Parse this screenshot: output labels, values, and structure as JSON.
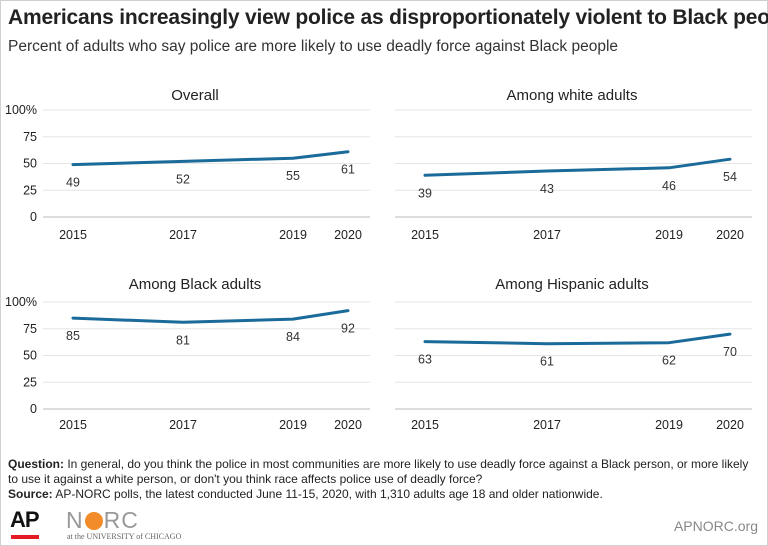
{
  "title": "Americans increasingly view police as disproportionately violent to Black people",
  "subtitle": "Percent of adults who say police are more likely to use deadly force against Black people",
  "chart_data": [
    {
      "type": "line",
      "title": "Overall",
      "x": [
        "2015",
        "2017",
        "2019",
        "2020"
      ],
      "values": [
        49,
        52,
        55,
        61
      ],
      "ylim": [
        0,
        100
      ],
      "yticks": [
        "100%",
        "75",
        "50",
        "25",
        "0"
      ],
      "color": "#1a6a9a"
    },
    {
      "type": "line",
      "title": "Among white adults",
      "x": [
        "2015",
        "2017",
        "2019",
        "2020"
      ],
      "values": [
        39,
        43,
        46,
        54
      ],
      "ylim": [
        0,
        100
      ],
      "color": "#1a6a9a"
    },
    {
      "type": "line",
      "title": "Among Black adults",
      "x": [
        "2015",
        "2017",
        "2019",
        "2020"
      ],
      "values": [
        85,
        81,
        84,
        92
      ],
      "ylim": [
        0,
        100
      ],
      "yticks": [
        "100%",
        "75",
        "50",
        "25",
        "0"
      ],
      "color": "#1a6a9a"
    },
    {
      "type": "line",
      "title": "Among Hispanic adults",
      "x": [
        "2015",
        "2017",
        "2019",
        "2020"
      ],
      "values": [
        63,
        61,
        62,
        70
      ],
      "ylim": [
        0,
        100
      ],
      "color": "#1a6a9a"
    }
  ],
  "notes": {
    "question_label": "Question:",
    "question_text": " In general, do you think the police in most communities are more likely to use deadly force against a Black person, or more likely to use it against a white person, or don't you think race affects police use of deadly force?",
    "source_label": "Source:",
    "source_text": " AP-NORC polls, the latest conducted June 11-15, 2020, with 1,310 adults age 18 and older nationwide."
  },
  "footer": {
    "ap_logo": "AP",
    "norc_n": "N",
    "norc_rc": "RC",
    "norc_sub": "at the UNIVERSITY of CHICAGO",
    "site": "APNORC.org"
  }
}
